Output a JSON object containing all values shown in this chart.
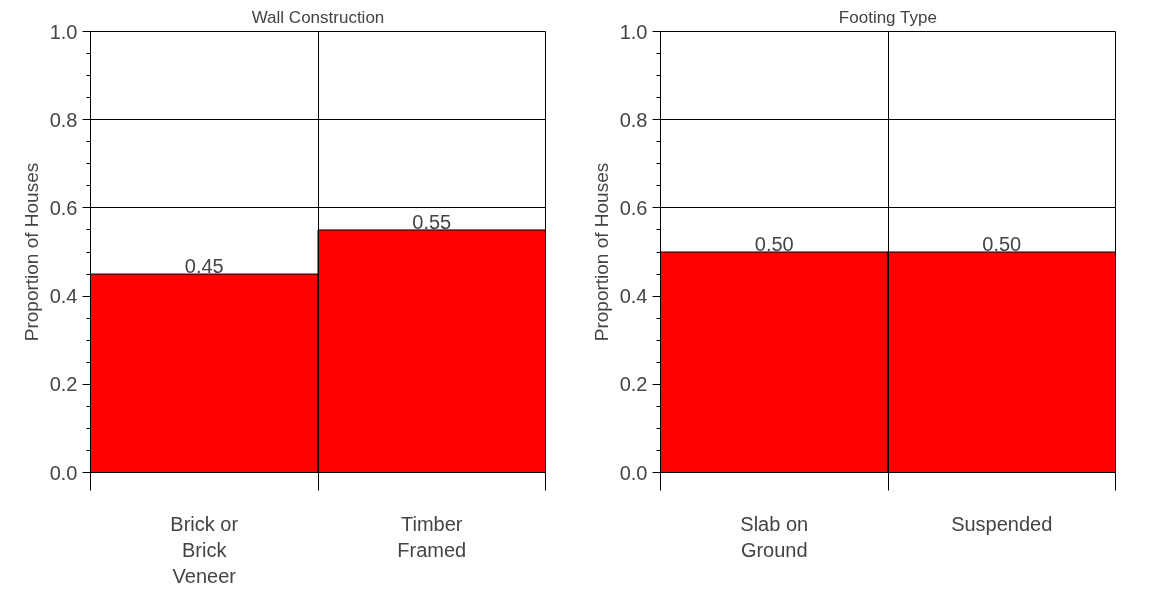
{
  "chart_data": [
    {
      "type": "bar",
      "title": "Wall Construction",
      "ylabel": "Proportion of Houses",
      "categories": [
        "Brick or Brick Veneer",
        "Timber Framed"
      ],
      "values": [
        0.45,
        0.55
      ],
      "value_labels": [
        "0.45",
        "0.55"
      ],
      "color": "#ff0000",
      "ylim": [
        0,
        1
      ],
      "yticks": [
        {
          "value": 0,
          "label": "0.0"
        },
        {
          "value": 0.2,
          "label": "0.2"
        },
        {
          "value": 0.4,
          "label": "0.4"
        },
        {
          "value": 0.6,
          "label": "0.6"
        },
        {
          "value": 0.8,
          "label": "0.8"
        },
        {
          "value": 1,
          "label": "1.0"
        }
      ],
      "grid": true
    },
    {
      "type": "bar",
      "title": "Footing Type",
      "ylabel": "Proportion of Houses",
      "categories": [
        "Slab on Ground",
        "Suspended"
      ],
      "values": [
        0.5,
        0.5
      ],
      "value_labels": [
        "0.50",
        "0.50"
      ],
      "color": "#ff0000",
      "ylim": [
        0,
        1
      ],
      "yticks": [
        {
          "value": 0,
          "label": "0.0"
        },
        {
          "value": 0.2,
          "label": "0.2"
        },
        {
          "value": 0.4,
          "label": "0.4"
        },
        {
          "value": 0.6,
          "label": "0.6"
        },
        {
          "value": 0.8,
          "label": "0.8"
        },
        {
          "value": 1,
          "label": "1.0"
        }
      ],
      "grid": true
    }
  ]
}
